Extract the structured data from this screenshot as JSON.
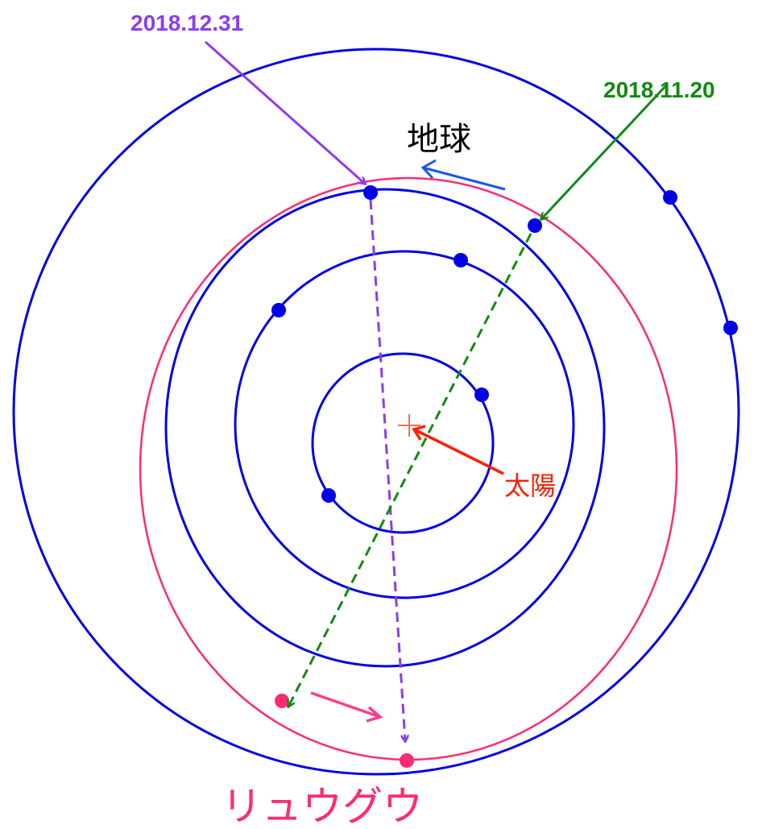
{
  "labels": {
    "date_dec": "2018.12.31",
    "date_nov": "2018.11.20",
    "earth": "地球",
    "sun": "太陽",
    "ryugu": "リュウグウ"
  },
  "colors": {
    "orbit": "#0000e6",
    "ryugu_orbit": "#ff2a75",
    "date_dec": "#8b3cf2",
    "date_nov": "#118a11",
    "sun": "#ff1f00",
    "earth_arrow": "#1a55f0",
    "ryugu_arrow": "#ff3d8d",
    "earth_text": "#000000",
    "ryugu_text": "#ff2a75"
  },
  "icons": {
    "sun_marker": "plus-icon",
    "planet_marker": "dot-icon"
  }
}
